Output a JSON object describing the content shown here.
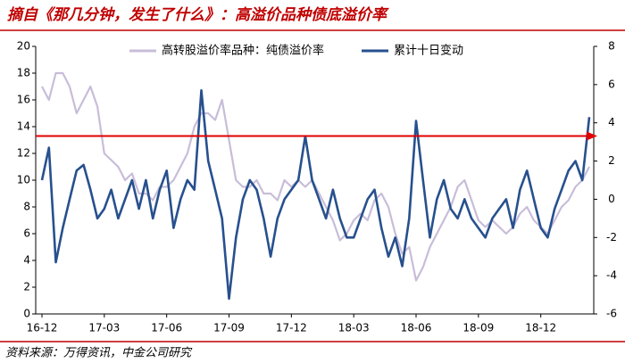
{
  "chart_data": {
    "type": "line",
    "title": "摘自《那几分钟，发生了什么》：高溢价品种债底溢价率",
    "source": "资料来源：万得资讯，中金公司研究",
    "categories": [
      "16-12",
      null,
      null,
      null,
      null,
      null,
      null,
      null,
      null,
      "17-03",
      null,
      null,
      null,
      null,
      null,
      null,
      null,
      null,
      "17-06",
      null,
      null,
      null,
      null,
      null,
      null,
      null,
      null,
      "17-09",
      null,
      null,
      null,
      null,
      null,
      null,
      null,
      null,
      "17-12",
      null,
      null,
      null,
      null,
      null,
      null,
      null,
      null,
      "18-03",
      null,
      null,
      null,
      null,
      null,
      null,
      null,
      null,
      "18-06",
      null,
      null,
      null,
      null,
      null,
      null,
      null,
      null,
      "18-09",
      null,
      null,
      null,
      null,
      null,
      null,
      null,
      null,
      "18-12",
      null,
      null,
      null,
      null,
      null,
      null,
      null
    ],
    "series": [
      {
        "name": "高转股溢价率品种：纯债溢价率",
        "color": "#c8bdd9",
        "axis": "y",
        "values": [
          17,
          16,
          18,
          18,
          17,
          15,
          16,
          17,
          15.5,
          12,
          11.5,
          11,
          10,
          10.5,
          9,
          9,
          8.5,
          9.5,
          9.5,
          10,
          11,
          12,
          14,
          15,
          15,
          14.5,
          16,
          13,
          10,
          9.5,
          9.5,
          10,
          9,
          9,
          8.5,
          10,
          9.5,
          10,
          9.5,
          10,
          9,
          8,
          7,
          5.5,
          6,
          7,
          7.5,
          7,
          8.5,
          9,
          8,
          6,
          4.5,
          5,
          2.5,
          3.5,
          5,
          6,
          7,
          8,
          9.5,
          10,
          8.5,
          7,
          6.5,
          7,
          6.5,
          6,
          6.5,
          7.5,
          8,
          7,
          6.5,
          6,
          7,
          8,
          8.5,
          9.5,
          10,
          11
        ]
      },
      {
        "name": "累计十日变动",
        "color": "#27508e",
        "axis": "y2",
        "values": [
          1,
          2.7,
          -3.3,
          -1.5,
          0,
          1.5,
          1.8,
          0.5,
          -1,
          -0.5,
          0.5,
          -1,
          0,
          1,
          -0.5,
          1,
          -1,
          0.5,
          1.5,
          -1.5,
          0,
          1,
          0.5,
          5.7,
          2,
          0.5,
          -1,
          -5.2,
          -2,
          0,
          1,
          0.5,
          -1,
          -3,
          -1,
          0,
          0.5,
          1,
          3.3,
          1,
          0,
          -1,
          0.5,
          -1,
          -2,
          -2,
          -1,
          0,
          0.5,
          -1.5,
          -3,
          -2,
          -3.5,
          -1,
          4.1,
          1,
          -2,
          0,
          1,
          -0.5,
          -1,
          0,
          -1,
          -1.5,
          -2,
          -1,
          -0.5,
          0,
          -1.5,
          0.5,
          1.5,
          0,
          -1.5,
          -2,
          -0.5,
          0.5,
          1.5,
          2,
          1,
          4.3
        ]
      }
    ],
    "ylim": [
      0,
      20
    ],
    "yticks": [
      0,
      2,
      4,
      6,
      8,
      10,
      12,
      14,
      16,
      18,
      20
    ],
    "y2lim": [
      -6,
      8
    ],
    "y2ticks": [
      -6,
      -4,
      -2,
      0,
      2,
      4,
      6,
      8
    ],
    "reference_line": {
      "value": 13.3,
      "color": "#e00000"
    }
  }
}
